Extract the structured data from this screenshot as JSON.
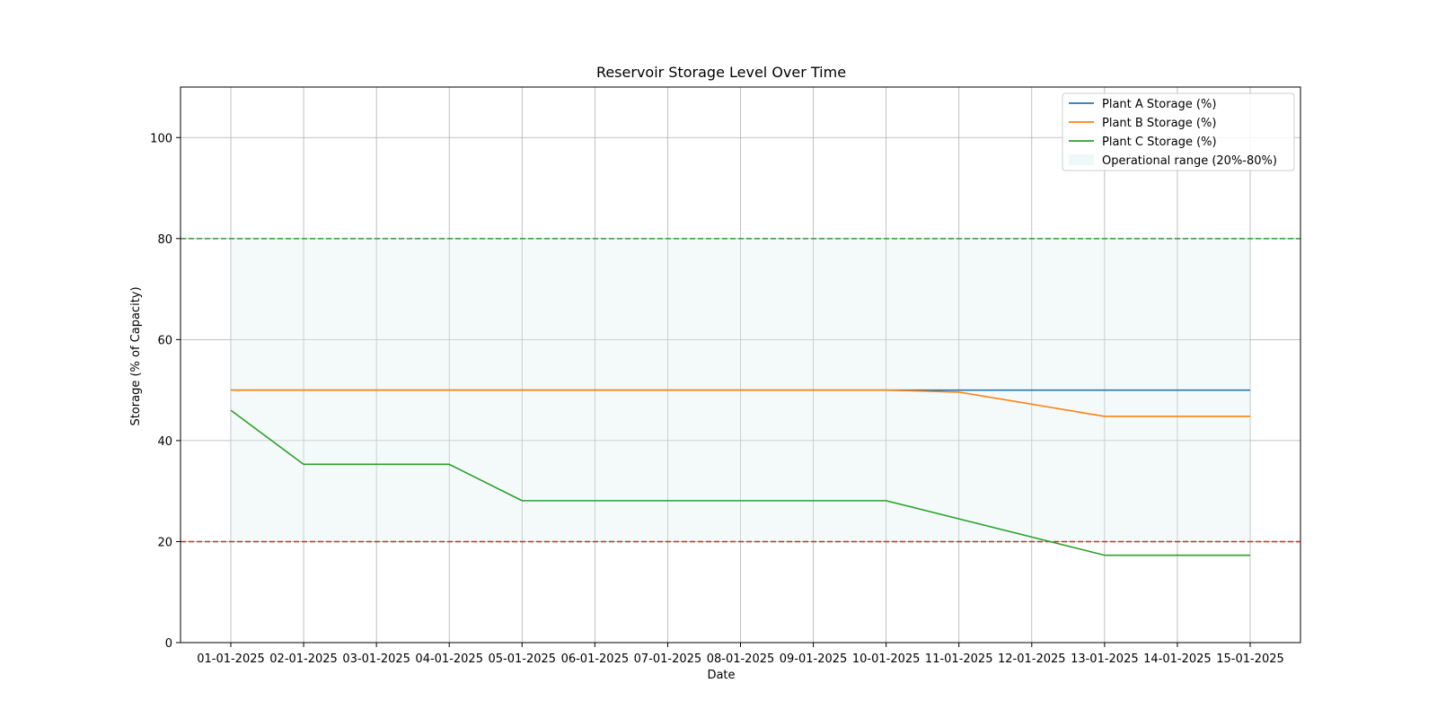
{
  "chart_data": {
    "type": "line",
    "title": "Reservoir Storage Level Over Time",
    "xlabel": "Date",
    "ylabel": "Storage (% of Capacity)",
    "x": [
      "01-01-2025",
      "02-01-2025",
      "03-01-2025",
      "04-01-2025",
      "05-01-2025",
      "06-01-2025",
      "07-01-2025",
      "08-01-2025",
      "09-01-2025",
      "10-01-2025",
      "11-01-2025",
      "12-01-2025",
      "13-01-2025",
      "14-01-2025",
      "15-01-2025"
    ],
    "ylim": [
      0,
      110
    ],
    "yticks": [
      0,
      20,
      40,
      60,
      80,
      100
    ],
    "grid": true,
    "legend_position": "top-right",
    "series": [
      {
        "name": "Plant A Storage (%)",
        "color": "#1f77b4",
        "values": [
          50,
          50,
          50,
          50,
          50,
          50,
          50,
          50,
          50,
          50,
          50,
          50,
          50,
          50,
          50
        ]
      },
      {
        "name": "Plant B Storage (%)",
        "color": "#ff7f0e",
        "values": [
          50,
          50,
          50,
          50,
          50,
          50,
          50,
          50,
          50,
          50,
          49.6,
          47.2,
          44.8,
          44.8,
          44.8
        ]
      },
      {
        "name": "Plant C Storage (%)",
        "color": "#2ca02c",
        "values": [
          46,
          35.3,
          35.3,
          35.3,
          28.1,
          28.1,
          28.1,
          28.1,
          28.1,
          28.1,
          24.5,
          20.9,
          17.3,
          17.3,
          17.3
        ]
      }
    ],
    "band": {
      "name": "Operational range (20%-80%)",
      "low": 20,
      "high": 80,
      "color": "#e0f2f1"
    },
    "reference_lines": [
      {
        "value": 80,
        "color": "#2ca02c",
        "style": "dashed"
      },
      {
        "value": 20,
        "color": "#d62728",
        "style": "dashed"
      }
    ]
  }
}
